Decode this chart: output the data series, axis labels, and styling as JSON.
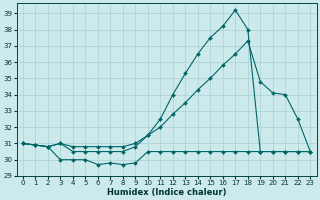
{
  "xlabel": "Humidex (Indice chaleur)",
  "bg_color": "#cce9ec",
  "grid_color": "#aad0d4",
  "line_color": "#006666",
  "xlim_min": -0.5,
  "xlim_max": 23.5,
  "ylim_min": 29,
  "ylim_max": 39.6,
  "yticks": [
    29,
    30,
    31,
    32,
    33,
    34,
    35,
    36,
    37,
    38,
    39
  ],
  "xticks": [
    0,
    1,
    2,
    3,
    4,
    5,
    6,
    7,
    8,
    9,
    10,
    11,
    12,
    13,
    14,
    15,
    16,
    17,
    18,
    19,
    20,
    21,
    22,
    23
  ],
  "curve1_x": [
    0,
    1,
    2,
    3,
    4,
    5,
    6,
    7,
    8,
    9,
    10,
    11,
    12,
    13,
    14,
    15,
    16,
    17,
    18,
    19,
    20,
    21,
    22,
    23
  ],
  "curve1_y": [
    31.0,
    30.9,
    30.8,
    31.0,
    30.5,
    30.5,
    30.5,
    30.5,
    30.5,
    30.8,
    31.5,
    32.5,
    34.0,
    35.3,
    36.5,
    37.5,
    38.2,
    39.2,
    38.0,
    30.5,
    30.5,
    30.5,
    30.5,
    30.5
  ],
  "curve2_x": [
    0,
    1,
    2,
    3,
    4,
    5,
    6,
    7,
    8,
    9,
    10,
    11,
    12,
    13,
    14,
    15,
    16,
    17,
    18,
    19,
    20,
    21,
    22,
    23
  ],
  "curve2_y": [
    31.0,
    30.9,
    30.8,
    31.0,
    30.8,
    30.8,
    30.8,
    30.8,
    30.8,
    31.0,
    31.5,
    32.0,
    32.8,
    33.5,
    34.3,
    35.0,
    35.8,
    36.5,
    37.3,
    34.8,
    34.1,
    34.0,
    32.5,
    30.5
  ],
  "curve3_x": [
    0,
    1,
    2,
    3,
    4,
    5,
    6,
    7,
    8,
    9,
    10,
    11,
    12,
    13,
    14,
    15,
    16,
    17,
    18,
    19,
    20,
    21,
    22,
    23
  ],
  "curve3_y": [
    31.0,
    30.9,
    30.8,
    30.0,
    30.0,
    30.0,
    29.7,
    29.8,
    29.7,
    29.8,
    30.5,
    30.5,
    30.5,
    30.5,
    30.5,
    30.5,
    30.5,
    30.5,
    30.5,
    30.5,
    30.5,
    30.5,
    30.5,
    30.5
  ]
}
